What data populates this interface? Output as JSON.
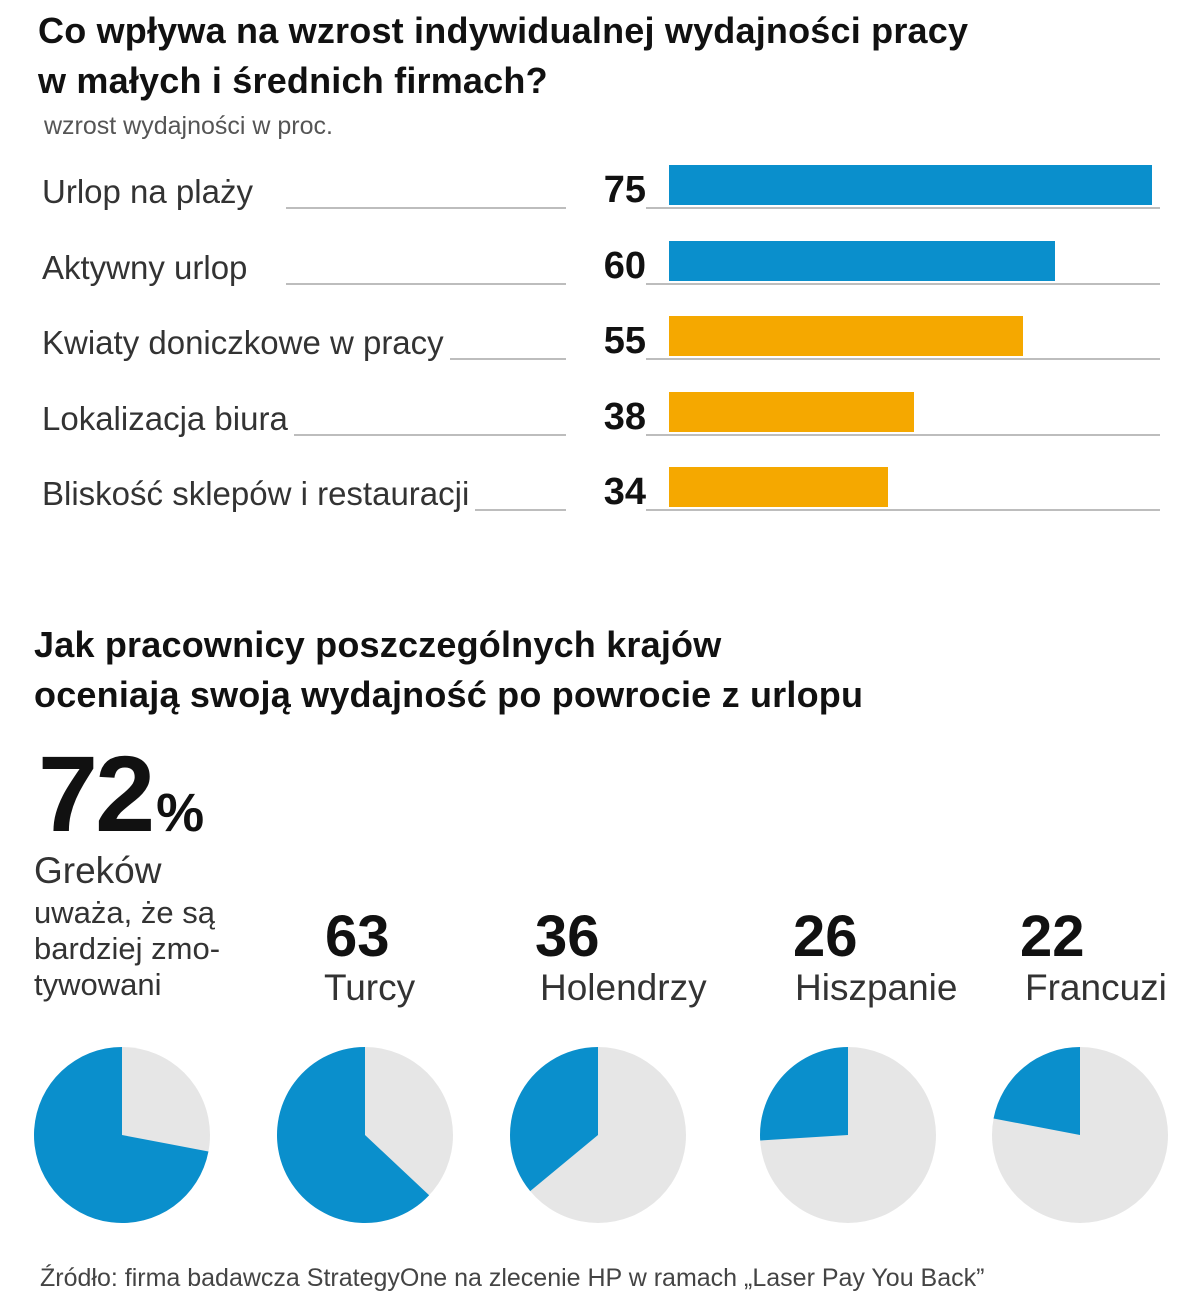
{
  "chart_data": [
    {
      "type": "bar",
      "title": "Co wpływa na wzrost indywidualnej wydajności pracy w małych i średnich firmach?",
      "subtitle": "wzrost wydajności w proc.",
      "orientation": "horizontal",
      "categories": [
        "Urlop na plaży",
        "Aktywny urlop",
        "Kwiaty doniczkowe w pracy",
        "Lokalizacja biura",
        "Bliskość sklepów i restauracji"
      ],
      "values": [
        75,
        60,
        55,
        38,
        34
      ],
      "bar_colors": [
        "#0a8fcc",
        "#0a8fcc",
        "#f5a800",
        "#f5a800",
        "#f5a800"
      ],
      "xlim": [
        0,
        75
      ]
    },
    {
      "type": "pie",
      "title": "Jak pracownicy poszczególnych krajów oceniają swoją wydajność po powrocie z urlopu",
      "series": [
        {
          "name": "Greków",
          "value": 72
        },
        {
          "name": "Turcy",
          "value": 63
        },
        {
          "name": "Holendrzy",
          "value": 36
        },
        {
          "name": "Hiszpanie",
          "value": 26
        },
        {
          "name": "Francuzi",
          "value": 22
        }
      ],
      "highlight": {
        "value": "72",
        "unit": "%",
        "label": "Greków",
        "description": "uważa, że są bardziej zmo-tywowani"
      },
      "slice_color": "#0a8fcc",
      "rest_color": "#e6e6e6"
    }
  ],
  "source": "Źródło: firma badawcza StrategyOne na zlecenie HP w ramach „Laser Pay You Back”"
}
